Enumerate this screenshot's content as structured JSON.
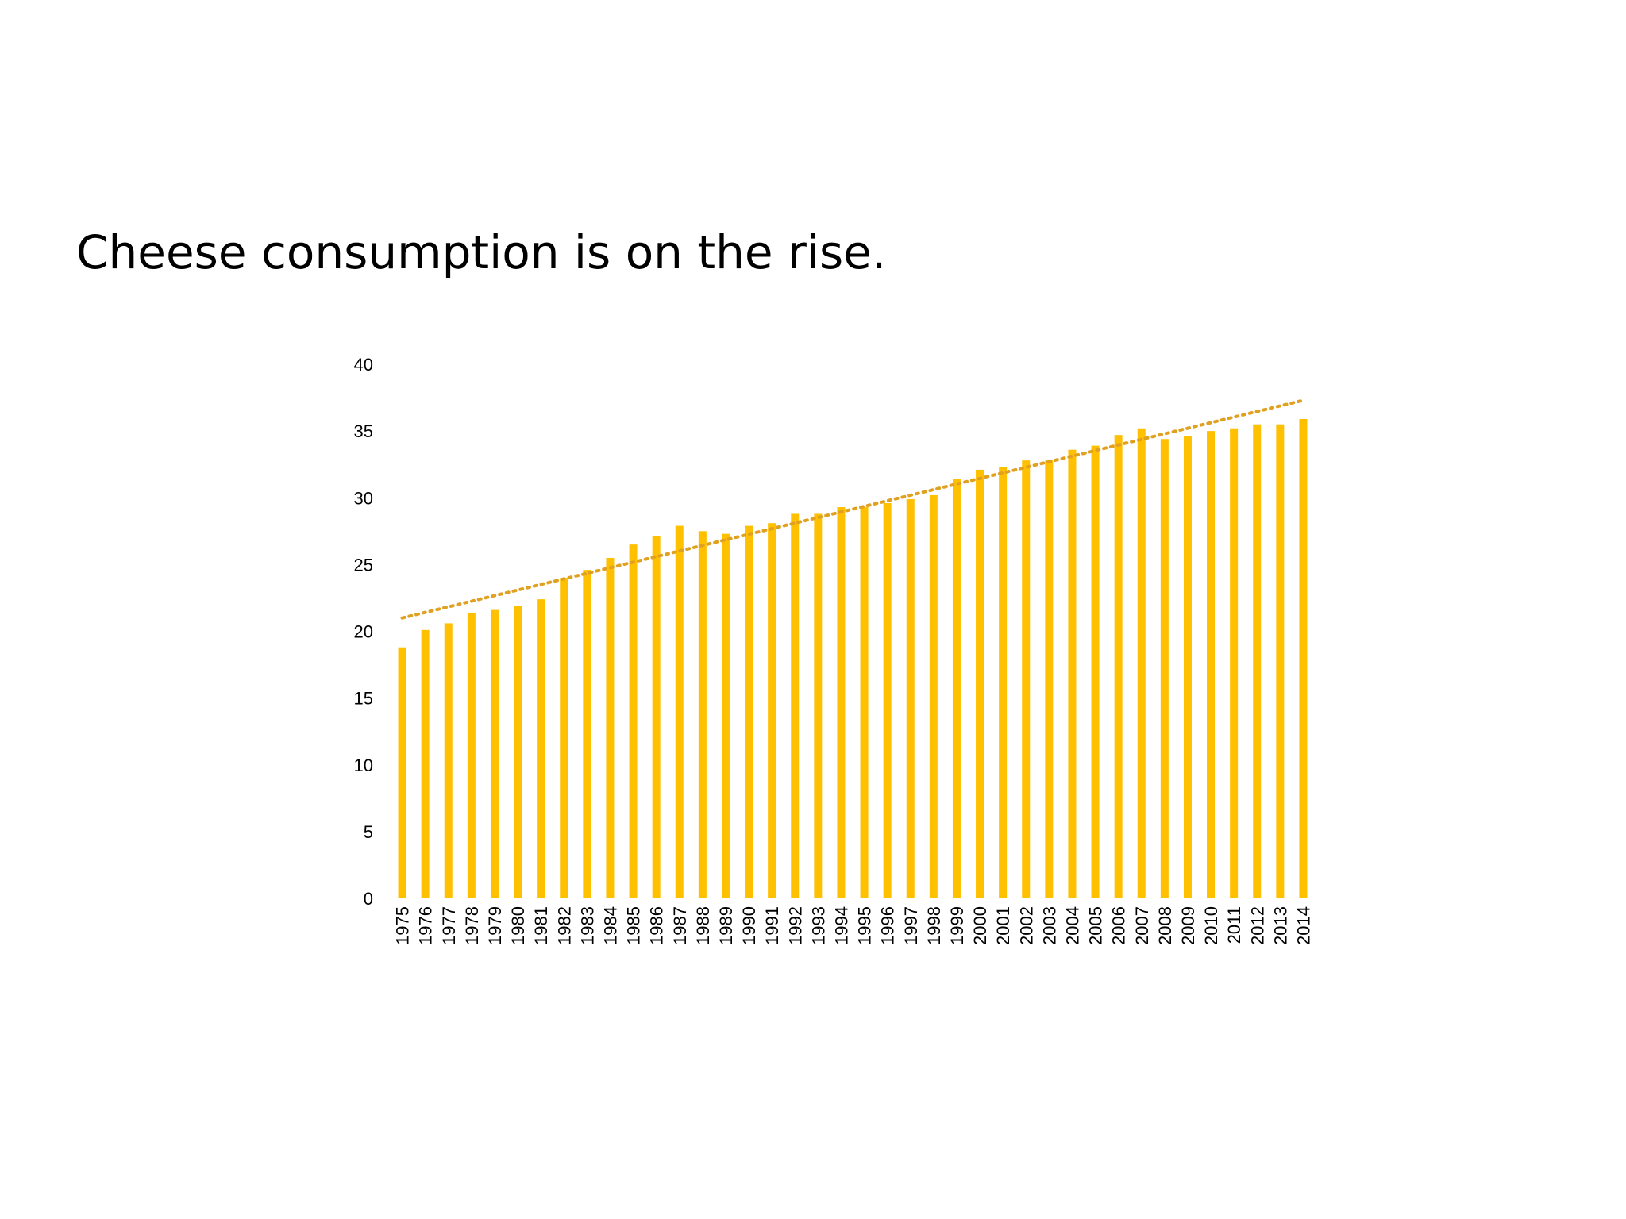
{
  "slide": {
    "title": "Cheese consumption is on the rise."
  },
  "colors": {
    "bar": "#FFC000",
    "trendline": "#E0A020",
    "text": "#000000",
    "background": "#FFFFFF"
  },
  "chart_data": {
    "type": "bar",
    "title": "",
    "xlabel": "",
    "ylabel": "",
    "ylim": [
      0,
      40
    ],
    "yticks": [
      0,
      5,
      10,
      15,
      20,
      25,
      30,
      35,
      40
    ],
    "gridlines": false,
    "legend": "none",
    "trendline": {
      "type": "linear",
      "style": "dotted",
      "start_value": 21.0,
      "end_value": 37.3
    },
    "categories": [
      "1975",
      "1976",
      "1977",
      "1978",
      "1979",
      "1980",
      "1981",
      "1982",
      "1983",
      "1984",
      "1985",
      "1986",
      "1987",
      "1988",
      "1989",
      "1990",
      "1991",
      "1992",
      "1993",
      "1994",
      "1995",
      "1996",
      "1997",
      "1998",
      "1999",
      "2000",
      "2001",
      "2002",
      "2003",
      "2004",
      "2005",
      "2006",
      "2007",
      "2008",
      "2009",
      "2010",
      "2011",
      "2012",
      "2013",
      "2014"
    ],
    "values": [
      18.8,
      20.1,
      20.6,
      21.4,
      21.6,
      21.9,
      22.4,
      24.0,
      24.6,
      25.5,
      26.5,
      27.1,
      27.9,
      27.5,
      27.3,
      27.9,
      28.1,
      28.8,
      28.8,
      29.3,
      29.3,
      29.6,
      29.9,
      30.2,
      31.4,
      32.1,
      32.3,
      32.8,
      32.8,
      33.6,
      33.9,
      34.7,
      35.2,
      34.4,
      34.6,
      35.0,
      35.2,
      35.5,
      35.5,
      35.9
    ]
  }
}
